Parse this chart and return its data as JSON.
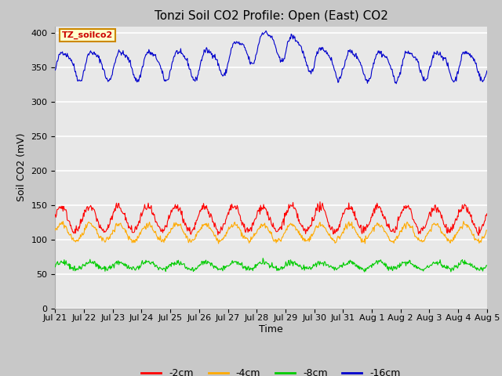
{
  "title": "Tonzi Soil CO2 Profile: Open (East) CO2",
  "xlabel": "Time",
  "ylabel": "Soil CO2 (mV)",
  "ylim": [
    0,
    410
  ],
  "yticks": [
    0,
    50,
    100,
    150,
    200,
    250,
    300,
    350,
    400
  ],
  "x_labels": [
    "Jul 21",
    "Jul 22",
    "Jul 23",
    "Jul 24",
    "Jul 25",
    "Jul 26",
    "Jul 27",
    "Jul 28",
    "Jul 29",
    "Jul 30",
    "Jul 31",
    "Aug 1",
    "Aug 2",
    "Aug 3",
    "Aug 4",
    "Aug 5"
  ],
  "legend_labels": [
    "-2cm",
    "-4cm",
    "-8cm",
    "-16cm"
  ],
  "legend_colors": [
    "#ff0000",
    "#ffaa00",
    "#00cc00",
    "#0000cc"
  ],
  "line_colors": {
    "m2cm": "#ff0000",
    "m4cm": "#ffaa00",
    "m8cm": "#00cc00",
    "m16cm": "#0000cc"
  },
  "annotation_text": "TZ_soilco2",
  "annotation_bg": "#ffffcc",
  "annotation_border": "#cc8800",
  "annotation_text_color": "#cc0000",
  "fig_bg_color": "#c8c8c8",
  "plot_bg_color": "#e8e8e8",
  "title_fontsize": 11,
  "axis_label_fontsize": 9,
  "tick_fontsize": 8,
  "n_days": 15,
  "points_per_day": 48
}
